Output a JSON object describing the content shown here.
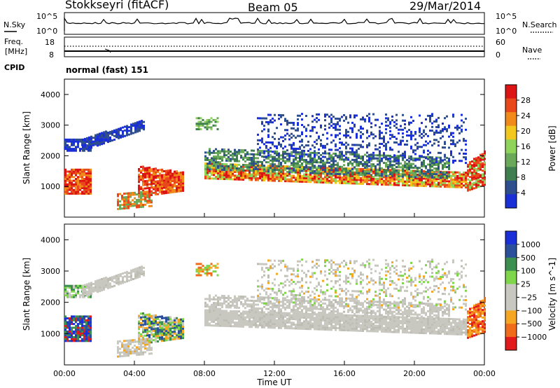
{
  "header": {
    "station": "Stokkseyri (fitACF)",
    "beam": "Beam 05",
    "date": "29/Mar/2014"
  },
  "noise_panel": {
    "left_label": "N.Sky",
    "right_label": "N.Search",
    "left_ticks": [
      "10^5",
      "10^0"
    ],
    "right_ticks": [
      "10^5",
      "10^0"
    ]
  },
  "freq_panel": {
    "left_label_1": "Freq.",
    "left_label_2": "[MHz]",
    "left_ticks": [
      "18",
      "8"
    ],
    "right_label": "Nave",
    "right_ticks": [
      "60",
      "0"
    ]
  },
  "cpid": {
    "label": "CPID",
    "value": "normal (fast) 151"
  },
  "colors": {
    "power": [
      "#1a2fd8",
      "#2e4e8e",
      "#3f7f4f",
      "#6aa85a",
      "#8fd35a",
      "#f2c81e",
      "#f08a1a",
      "#e8481a",
      "#dc1414"
    ],
    "velocity": [
      "#e31a1c",
      "#f06b1a",
      "#f5a623",
      "#c8c8c0",
      "#c8c8c0",
      "#7fd64a",
      "#3c8f4f",
      "#2b4f9a",
      "#1a2fd8"
    ]
  },
  "chart_data": [
    {
      "type": "heatmap",
      "panel": "power",
      "ylabel": "Slant Range [km]",
      "yticks": [
        "4000",
        "3000",
        "2000",
        "1000"
      ],
      "ylim": [
        0,
        4500
      ],
      "xlim": [
        "00:00",
        "24:00"
      ],
      "colorbar_label": "Power [dB]",
      "colorbar_ticks": [
        "28",
        "24",
        "20",
        "16",
        "12",
        "8",
        "4"
      ],
      "colorbar_range": [
        0,
        32
      ]
    },
    {
      "type": "heatmap",
      "panel": "velocity",
      "ylabel": "Slant Range [km]",
      "yticks": [
        "4000",
        "3000",
        "2000",
        "1000"
      ],
      "ylim": [
        0,
        4500
      ],
      "xlabel": "Time UT",
      "xticks": [
        "00:00",
        "04:00",
        "08:00",
        "12:00",
        "16:00",
        "20:00",
        "00:00"
      ],
      "colorbar_label": "Velocity [m s^-1]",
      "colorbar_ticks": [
        "1000",
        "500",
        "100",
        "25",
        "−25",
        "−100",
        "−500",
        "−1000"
      ]
    }
  ]
}
